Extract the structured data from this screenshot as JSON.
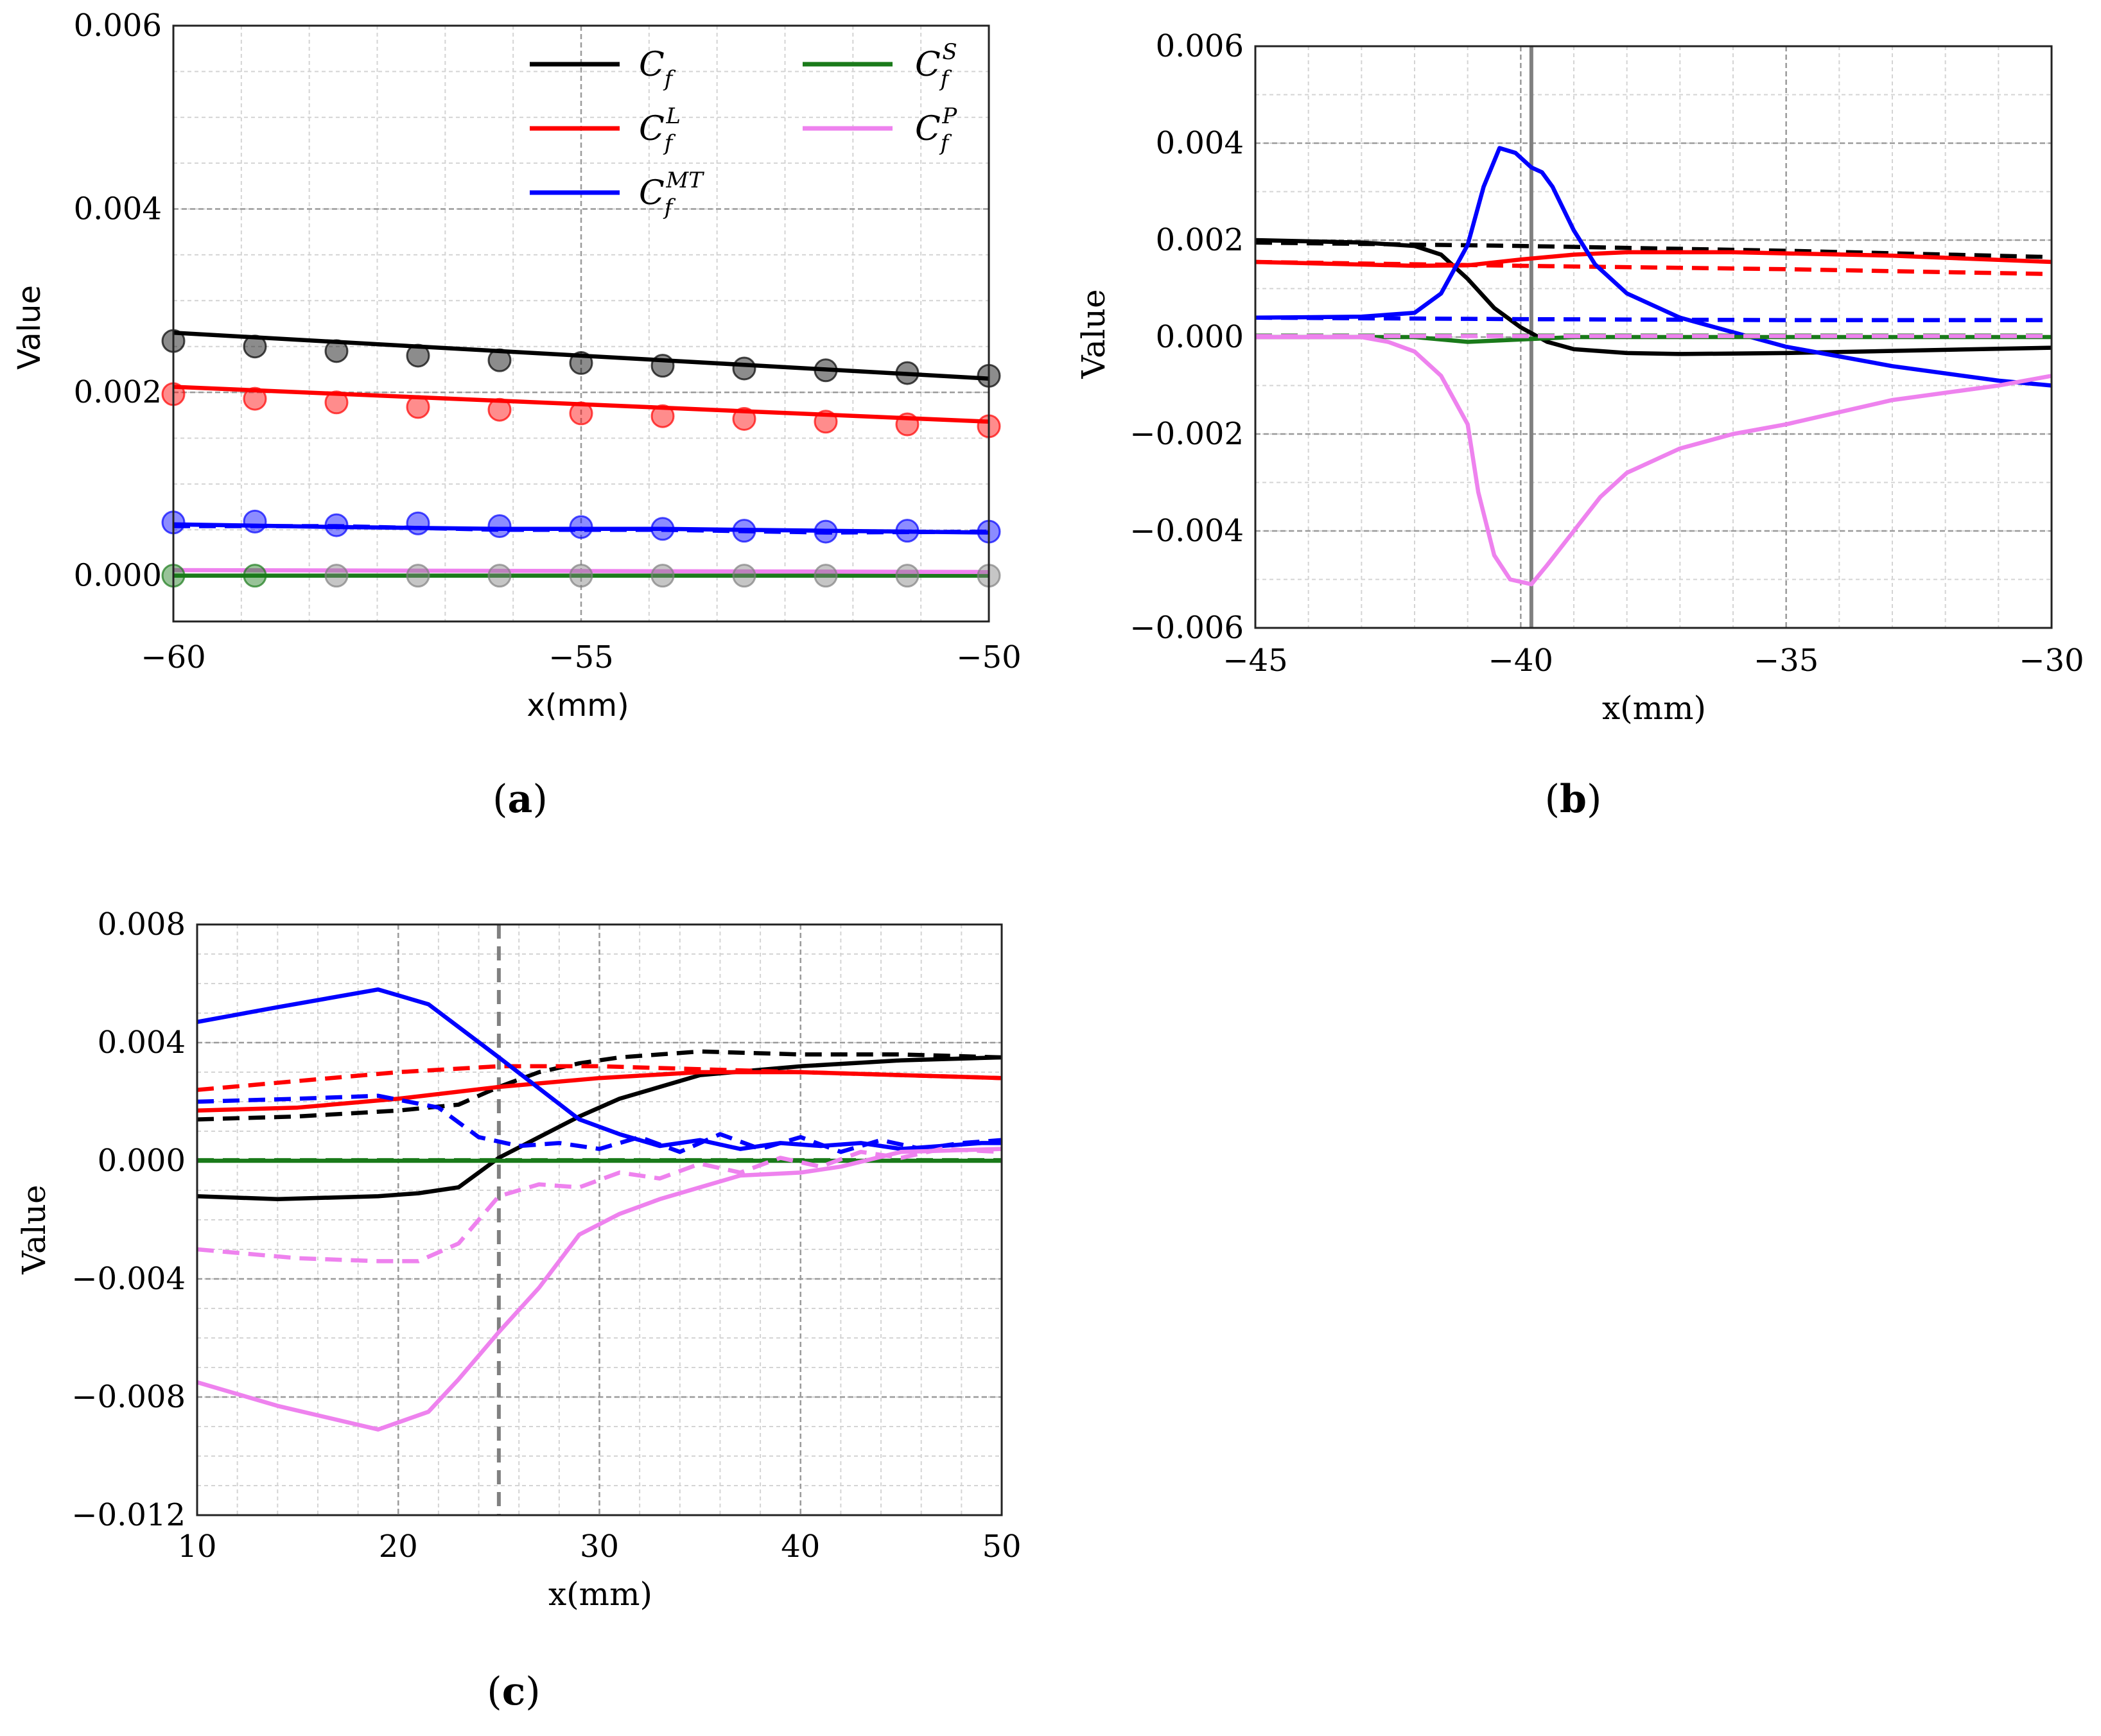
{
  "chart_data": [
    {
      "id": "a",
      "type": "line",
      "caption": "a",
      "xlabel": "x(mm)",
      "ylabel": "Value",
      "xlim": [
        -60,
        -50
      ],
      "ylim": [
        -0.0005,
        0.006
      ],
      "xticks": [
        -60,
        -55,
        -50
      ],
      "xtick_labels": [
        "−60",
        "−55",
        "−50"
      ],
      "yticks": [
        0.0,
        0.002,
        0.004,
        0.006
      ],
      "ytick_labels": [
        "0.000",
        "0.002",
        "0.004",
        "0.006"
      ],
      "grid": true,
      "legend": {
        "position": "top-right",
        "entries": [
          {
            "key": "Cf",
            "base": "C",
            "sub": "f",
            "sup": "",
            "color": "#000000"
          },
          {
            "key": "CfS",
            "base": "C",
            "sub": "f",
            "sup": "S",
            "color": "#1a7a1a"
          },
          {
            "key": "CfL",
            "base": "C",
            "sub": "f",
            "sup": "L",
            "color": "#ff0000"
          },
          {
            "key": "CfP",
            "base": "C",
            "sub": "f",
            "sup": "P",
            "color": "#ee82ee"
          },
          {
            "key": "CfMT",
            "base": "C",
            "sub": "f",
            "sup": "MT",
            "color": "#0000ff"
          }
        ]
      },
      "series": [
        {
          "name": "Cf",
          "style": "solid",
          "color": "#000000",
          "x": [
            -60,
            -50
          ],
          "y": [
            0.00265,
            0.00215
          ]
        },
        {
          "name": "CfL",
          "style": "solid",
          "color": "#ff0000",
          "x": [
            -60,
            -50
          ],
          "y": [
            0.00206,
            0.00168
          ]
        },
        {
          "name": "CfMT",
          "style": "solid",
          "color": "#0000ff",
          "x": [
            -60,
            -58,
            -56,
            -54,
            -52,
            -50
          ],
          "y": [
            0.00056,
            0.00053,
            0.00051,
            0.00051,
            0.00049,
            0.00047
          ]
        },
        {
          "name": "CfMT dashed",
          "style": "dashed",
          "color": "#0000ff",
          "x": [
            -60,
            -58,
            -56,
            -54,
            -52,
            -50
          ],
          "y": [
            0.00054,
            0.00054,
            0.0005,
            0.0005,
            0.00047,
            0.00048
          ]
        },
        {
          "name": "CfS",
          "style": "solid",
          "color": "#1a7a1a",
          "x": [
            -60,
            -50
          ],
          "y": [
            0.0,
            0.0
          ]
        },
        {
          "name": "CfP",
          "style": "solid",
          "color": "#ee82ee",
          "x": [
            -60,
            -50
          ],
          "y": [
            6e-05,
            4e-05
          ]
        }
      ],
      "markers": [
        {
          "name": "Cf ref",
          "color": "#000000",
          "x": [
            -60,
            -59,
            -58,
            -57,
            -56,
            -55,
            -54,
            -53,
            -52,
            -51,
            -50
          ],
          "y": [
            0.00256,
            0.0025,
            0.00245,
            0.0024,
            0.00235,
            0.00232,
            0.00229,
            0.00226,
            0.00224,
            0.00221,
            0.00218
          ]
        },
        {
          "name": "CfL ref",
          "color": "#ff0000",
          "x": [
            -60,
            -59,
            -58,
            -57,
            -56,
            -55,
            -54,
            -53,
            -52,
            -51,
            -50
          ],
          "y": [
            0.00198,
            0.00193,
            0.00189,
            0.00184,
            0.00181,
            0.00177,
            0.00174,
            0.00171,
            0.00168,
            0.00165,
            0.00163
          ]
        },
        {
          "name": "CfMT ref",
          "color": "#0000ff",
          "x": [
            -60,
            -59,
            -58,
            -57,
            -56,
            -55,
            -54,
            -53,
            -52,
            -51,
            -50
          ],
          "y": [
            0.00058,
            0.00059,
            0.00055,
            0.00057,
            0.00054,
            0.00053,
            0.00051,
            0.00049,
            0.00048,
            0.00049,
            0.00048
          ]
        },
        {
          "name": "CfS ref",
          "color": "#1a7a1a",
          "x": [
            -60,
            -59
          ],
          "y": [
            0.0,
            0.0
          ]
        },
        {
          "name": "CfP ref",
          "color": "#808080",
          "x": [
            -58,
            -57,
            -56,
            -55,
            -54,
            -53,
            -52,
            -51,
            -50
          ],
          "y": [
            0.0,
            0.0,
            0.0,
            0.0,
            0.0,
            0.0,
            0.0,
            0.0,
            0.0
          ]
        }
      ]
    },
    {
      "id": "b",
      "type": "line",
      "caption": "b",
      "xlabel": "x(mm)",
      "ylabel": "Value",
      "xlim": [
        -45,
        -30
      ],
      "ylim": [
        -0.006,
        0.006
      ],
      "xticks": [
        -45,
        -40,
        -35,
        -30
      ],
      "xtick_labels": [
        "−45",
        "−40",
        "−35",
        "−30"
      ],
      "yticks": [
        -0.006,
        -0.004,
        -0.002,
        0.0,
        0.002,
        0.004,
        0.006
      ],
      "ytick_labels": [
        "−0.006",
        "−0.004",
        "−0.002",
        "0.000",
        "0.002",
        "0.004",
        "0.006"
      ],
      "grid": true,
      "vline": {
        "x": -39.8,
        "style": "solid",
        "color": "#808080"
      },
      "series": [
        {
          "name": "Cf",
          "style": "solid",
          "color": "#000000",
          "x": [
            -45,
            -43,
            -42,
            -41.5,
            -41,
            -40.5,
            -40,
            -39.5,
            -39,
            -38,
            -37,
            -35,
            -30
          ],
          "y": [
            0.002,
            0.00195,
            0.00188,
            0.0017,
            0.0012,
            0.0006,
            0.0002,
            -0.0001,
            -0.00025,
            -0.00033,
            -0.00035,
            -0.00033,
            -0.00022
          ]
        },
        {
          "name": "Cf dashed",
          "style": "dashed",
          "color": "#000000",
          "x": [
            -45,
            -40,
            -35,
            -30
          ],
          "y": [
            0.00195,
            0.00188,
            0.00178,
            0.00165
          ]
        },
        {
          "name": "CfL",
          "style": "solid",
          "color": "#ff0000",
          "x": [
            -45,
            -42,
            -41,
            -40,
            -39,
            -38,
            -36,
            -33,
            -30
          ],
          "y": [
            0.00155,
            0.00147,
            0.00148,
            0.0016,
            0.0017,
            0.00175,
            0.00175,
            0.00168,
            0.00155
          ]
        },
        {
          "name": "CfL dashed",
          "style": "dashed",
          "color": "#ff0000",
          "x": [
            -45,
            -40,
            -35,
            -30
          ],
          "y": [
            0.00155,
            0.00147,
            0.0014,
            0.0013
          ]
        },
        {
          "name": "CfMT",
          "style": "solid",
          "color": "#0000ff",
          "x": [
            -45,
            -43,
            -42,
            -41.5,
            -41,
            -40.7,
            -40.4,
            -40.1,
            -39.8,
            -39.6,
            -39.4,
            -39,
            -38.6,
            -38,
            -37,
            -36,
            -35,
            -33,
            -31,
            -30
          ],
          "y": [
            0.0004,
            0.00042,
            0.0005,
            0.0009,
            0.0019,
            0.0031,
            0.0039,
            0.0038,
            0.0035,
            0.0034,
            0.0031,
            0.0022,
            0.0015,
            0.0009,
            0.0004,
            0.0001,
            -0.0002,
            -0.0006,
            -0.0009,
            -0.001
          ]
        },
        {
          "name": "CfMT dashed",
          "style": "dashed",
          "color": "#0000ff",
          "x": [
            -45,
            -40,
            -35,
            -30
          ],
          "y": [
            0.0004,
            0.00037,
            0.00035,
            0.00035
          ]
        },
        {
          "name": "CfS",
          "style": "solid",
          "color": "#1a7a1a",
          "x": [
            -45,
            -42,
            -41,
            -40,
            -39,
            -30
          ],
          "y": [
            0.0,
            0.0,
            -0.0001,
            -5e-05,
            0.0,
            0.0
          ]
        },
        {
          "name": "CfS dashed",
          "style": "dashed",
          "color": "#1a7a1a",
          "x": [
            -45,
            -30
          ],
          "y": [
            3e-05,
            3e-05
          ]
        },
        {
          "name": "CfP",
          "style": "solid",
          "color": "#ee82ee",
          "x": [
            -45,
            -43,
            -42.5,
            -42,
            -41.5,
            -41,
            -40.8,
            -40.5,
            -40.2,
            -39.8,
            -39.5,
            -39,
            -38.5,
            -38,
            -37,
            -36,
            -35,
            -33,
            -31,
            -30
          ],
          "y": [
            0.0,
            0.0,
            -0.0001,
            -0.0003,
            -0.0008,
            -0.0018,
            -0.0032,
            -0.0045,
            -0.005,
            -0.0051,
            -0.0047,
            -0.004,
            -0.0033,
            -0.0028,
            -0.0023,
            -0.002,
            -0.0018,
            -0.0013,
            -0.001,
            -0.0008
          ]
        },
        {
          "name": "CfP dashed",
          "style": "dashed",
          "color": "#ee82ee",
          "x": [
            -45,
            -30
          ],
          "y": [
            2e-05,
            2e-05
          ]
        }
      ]
    },
    {
      "id": "c",
      "type": "line",
      "caption": "c",
      "xlabel": "x(mm)",
      "ylabel": "Value",
      "xlim": [
        10,
        50
      ],
      "ylim": [
        -0.012,
        0.008
      ],
      "xticks": [
        10,
        20,
        30,
        40,
        50
      ],
      "xtick_labels": [
        "10",
        "20",
        "30",
        "40",
        "50"
      ],
      "yticks": [
        -0.012,
        -0.008,
        -0.004,
        0.0,
        0.004,
        0.008
      ],
      "ytick_labels": [
        "−0.012",
        "−0.008",
        "−0.004",
        "0.000",
        "0.004",
        "0.008"
      ],
      "grid": true,
      "vline": {
        "x": 25,
        "style": "dashed",
        "color": "#808080"
      },
      "series": [
        {
          "name": "Cf",
          "style": "solid",
          "color": "#000000",
          "x": [
            10,
            14,
            19,
            21,
            23,
            25,
            27,
            29,
            31,
            33,
            35,
            40,
            45,
            50
          ],
          "y": [
            -0.0012,
            -0.0013,
            -0.0012,
            -0.0011,
            -0.0009,
            0.0001,
            0.0008,
            0.0015,
            0.0021,
            0.0025,
            0.0029,
            0.0032,
            0.0034,
            0.0035
          ]
        },
        {
          "name": "Cf dashed",
          "style": "dashed",
          "color": "#000000",
          "x": [
            10,
            15,
            20,
            23,
            25,
            27,
            29,
            31,
            33,
            35,
            40,
            45,
            50
          ],
          "y": [
            0.0014,
            0.0015,
            0.0017,
            0.0019,
            0.0025,
            0.003,
            0.0033,
            0.0035,
            0.0036,
            0.0037,
            0.0036,
            0.0036,
            0.0035
          ]
        },
        {
          "name": "CfL",
          "style": "solid",
          "color": "#ff0000",
          "x": [
            10,
            15,
            20,
            25,
            30,
            35,
            40,
            45,
            50
          ],
          "y": [
            0.0017,
            0.0018,
            0.0021,
            0.0025,
            0.0028,
            0.003,
            0.003,
            0.0029,
            0.0028
          ]
        },
        {
          "name": "CfL dashed",
          "style": "dashed",
          "color": "#ff0000",
          "x": [
            10,
            15,
            20,
            25,
            30,
            35,
            40,
            45,
            50
          ],
          "y": [
            0.0024,
            0.0027,
            0.003,
            0.0032,
            0.0032,
            0.0031,
            0.003,
            0.0029,
            0.0028
          ]
        },
        {
          "name": "CfMT",
          "style": "solid",
          "color": "#0000ff",
          "x": [
            10,
            14,
            19,
            21.5,
            25,
            29,
            31,
            33,
            35,
            37,
            39,
            41,
            43,
            45,
            47,
            49,
            50
          ],
          "y": [
            0.0047,
            0.0052,
            0.0058,
            0.0053,
            0.0035,
            0.0014,
            0.0009,
            0.0005,
            0.0007,
            0.0004,
            0.0006,
            0.0005,
            0.0006,
            0.0004,
            0.0005,
            0.0006,
            0.0006
          ]
        },
        {
          "name": "CfMT dashed",
          "style": "dashed",
          "color": "#0000ff",
          "x": [
            10,
            15,
            19,
            22,
            24,
            26,
            28,
            30,
            32,
            34,
            36,
            38,
            40,
            42,
            44,
            46,
            48,
            50
          ],
          "y": [
            0.002,
            0.0021,
            0.0022,
            0.0018,
            0.0008,
            0.0005,
            0.0006,
            0.0004,
            0.0008,
            0.0003,
            0.0009,
            0.0004,
            0.0008,
            0.0003,
            0.0007,
            0.0004,
            0.0006,
            0.0007
          ]
        },
        {
          "name": "CfS",
          "style": "solid",
          "color": "#1a7a1a",
          "x": [
            10,
            50
          ],
          "y": [
            0.0,
            0.0
          ]
        },
        {
          "name": "CfS dashed",
          "style": "dashed",
          "color": "#1a7a1a",
          "x": [
            10,
            50
          ],
          "y": [
            2e-05,
            2e-05
          ]
        },
        {
          "name": "CfP",
          "style": "solid",
          "color": "#ee82ee",
          "x": [
            10,
            14,
            19,
            21.5,
            23,
            25,
            27,
            29,
            31,
            33,
            35,
            37,
            40,
            42,
            45,
            50
          ],
          "y": [
            -0.0075,
            -0.0083,
            -0.0091,
            -0.0085,
            -0.0074,
            -0.0058,
            -0.0043,
            -0.0025,
            -0.0018,
            -0.0013,
            -0.0009,
            -0.0005,
            -0.0004,
            -0.0002,
            0.0003,
            0.0004
          ]
        },
        {
          "name": "CfP dashed",
          "style": "dashed",
          "color": "#ee82ee",
          "x": [
            10,
            15,
            19,
            21,
            23,
            25,
            27,
            29,
            31,
            33,
            35,
            37,
            39,
            41,
            43,
            45,
            47,
            50
          ],
          "y": [
            -0.003,
            -0.0033,
            -0.0034,
            -0.0034,
            -0.0028,
            -0.0012,
            -0.0008,
            -0.0009,
            -0.0004,
            -0.0006,
            -0.0001,
            -0.0004,
            0.0001,
            -0.0002,
            0.0003,
            0.0001,
            0.0004,
            0.0003
          ]
        }
      ]
    }
  ]
}
